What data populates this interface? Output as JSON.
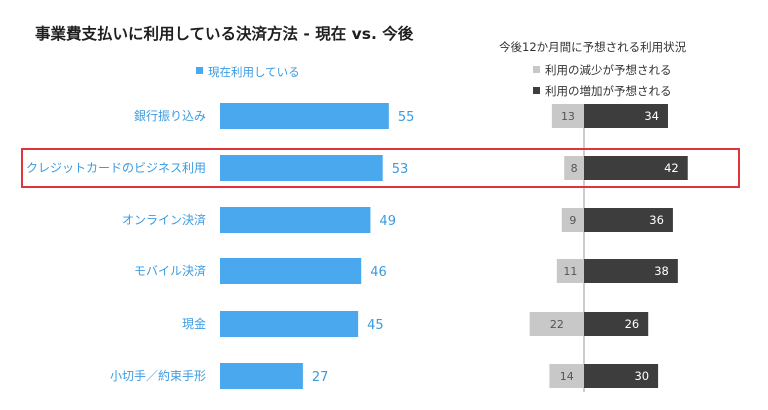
{
  "title": "事業費支払いに利用している決済方法 - 現在 vs. 今後",
  "legend_left": "現在利用している",
  "legend_right_title": "今後12か月間に予想される利用状況",
  "legend_right_items": [
    "利用の減少が予想される",
    "利用の増加が予想される"
  ],
  "colors": {
    "current": "#4aa8ef",
    "decrease": "#c8c8c8",
    "increase": "#3d3d3d",
    "value_current": "#3c9be0",
    "highlight": "#e0343c"
  },
  "chart_data": [
    {
      "type": "bar",
      "orientation": "horizontal",
      "categories": [
        "銀行振り込み",
        "クレジットカードのビジネス利用",
        "オンライン決済",
        "モバイル決済",
        "現金",
        "小切手／約束手形"
      ],
      "series": [
        {
          "name": "現在利用している",
          "values": [
            55,
            53,
            49,
            46,
            45,
            27
          ]
        }
      ]
    },
    {
      "type": "bar",
      "orientation": "horizontal",
      "diverging": true,
      "title": "今後12か月間に予想される利用状況",
      "categories": [
        "銀行振り込み",
        "クレジットカードのビジネス利用",
        "オンライン決済",
        "モバイル決済",
        "現金",
        "小切手／約束手形"
      ],
      "series": [
        {
          "name": "利用の減少が予想される",
          "values": [
            13,
            8,
            9,
            11,
            22,
            14
          ]
        },
        {
          "name": "利用の増加が予想される",
          "values": [
            34,
            42,
            36,
            38,
            26,
            30
          ]
        }
      ]
    }
  ],
  "highlighted_category": "クレジットカードのビジネス利用"
}
